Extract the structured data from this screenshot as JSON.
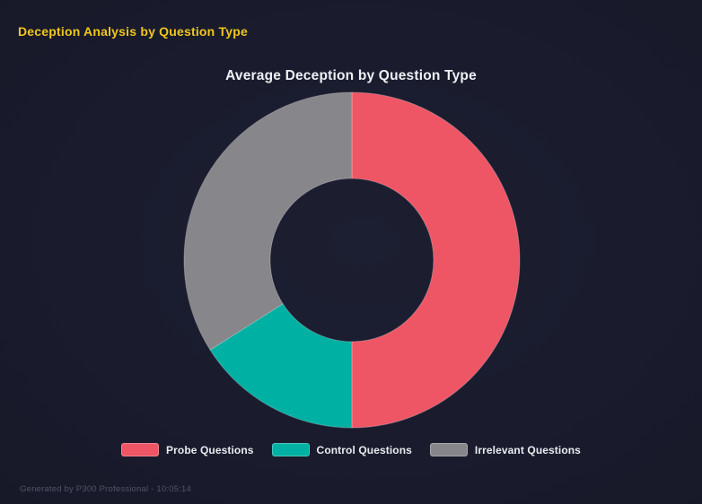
{
  "header": {
    "title": "Deception Analysis by Question Type"
  },
  "chart_data": {
    "type": "pie",
    "variant": "donut",
    "title": "Average Deception by Question Type",
    "categories": [
      "Probe Questions",
      "Control Questions",
      "Irrelevant Questions"
    ],
    "values": [
      50,
      16,
      34
    ],
    "colors": [
      "#ee5565",
      "#00b1a3",
      "#87868a"
    ],
    "legend_position": "bottom",
    "donut_cutout_ratio": 0.49,
    "outer_radius_px": 187,
    "inner_radius_px": 91,
    "start_angle_deg": 0,
    "direction": "clockwise",
    "data_labels_shown": false
  },
  "footer": {
    "text": "Generated by P300 Professional - 10:05:14"
  },
  "theme": {
    "background": "#1a1c2e",
    "header_title_color": "#f0c51e",
    "chart_title_color": "#eef0f4",
    "legend_text_color": "#e9ebf0",
    "footer_text_color": "#4f5468",
    "segment_border_color": "rgba(255,255,255,0.25)"
  }
}
